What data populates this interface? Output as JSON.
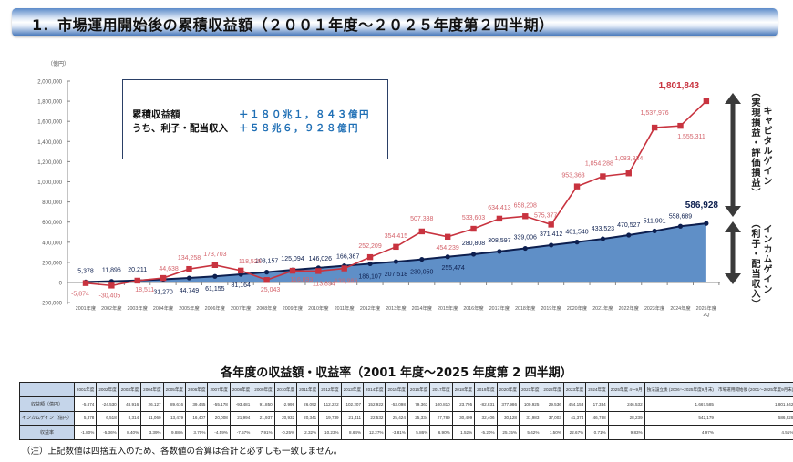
{
  "header": {
    "title": "1．市場運用開始後の累積収益額（２００１年度～２０２５年度第２四半期）"
  },
  "summary": {
    "rows": [
      {
        "label": "累積収益額",
        "value": "＋１８０兆１，８４３億円"
      },
      {
        "label": "うち、利子・配当収入",
        "value": "＋５８兆６，９２８億円"
      }
    ]
  },
  "side_labels": {
    "capital_gain": "キャピタルゲイン",
    "capital_gain_sub": "（実現損益・評価損益）",
    "income_gain": "インカムゲイン",
    "income_gain_sub": "（利子・配当収入）"
  },
  "colors": {
    "cumulative": "#c8333f",
    "cumulative_label": "#d4646c",
    "income_line": "#0d1f4f",
    "income_fill": "#5f8fc7",
    "axis": "#888888",
    "arrow": "#3a3a3a"
  },
  "chart_data": {
    "type": "line",
    "title": "市場運用開始後の累積収益額（2001年度～2025年度第2四半期）",
    "ylabel": "（億円）",
    "xlabel": "",
    "ylim": [
      -200000,
      2000000
    ],
    "yticks": [
      -200000,
      0,
      200000,
      400000,
      600000,
      800000,
      1000000,
      1200000,
      1400000,
      1600000,
      1800000,
      2000000
    ],
    "ytick_labels": [
      "-200,000",
      "0",
      "200,000",
      "400,000",
      "600,000",
      "800,000",
      "1,000,000",
      "1,200,000",
      "1,400,000",
      "1,600,000",
      "1,800,000",
      "2,000,000"
    ],
    "grid": false,
    "categories": [
      "2001年度",
      "2002年度",
      "2003年度",
      "2004年度",
      "2005年度",
      "2006年度",
      "2007年度",
      "2008年度",
      "2009年度",
      "2010年度",
      "2011年度",
      "2012年度",
      "2013年度",
      "2014年度",
      "2015年度",
      "2016年度",
      "2017年度",
      "2018年度",
      "2019年度",
      "2020年度",
      "2021年度",
      "2022年度",
      "2023年度",
      "2024年度",
      "2025年度"
    ],
    "x_suffix_last": "2Q",
    "series": [
      {
        "name": "累積収益額",
        "style": "line-square-markers",
        "values": [
          -5874,
          -30405,
          18511,
          44638,
          134258,
          173703,
          118525,
          25043,
          116893,
          113894,
          139986,
          252209,
          354415,
          507338,
          454239,
          533603,
          634413,
          658208,
          575377,
          953363,
          1054288,
          1083824,
          1537976,
          1555311,
          1801843
        ],
        "labels": [
          "-5,874",
          "-30,405",
          "18,511",
          "44,638",
          "134,258",
          "173,703",
          "118,525",
          "25,043",
          "116,893",
          "113,894",
          "139,986",
          "252,209",
          "354,415",
          "507,338",
          "454,239",
          "533,603",
          "634,413",
          "658,208",
          "575,377",
          "953,363",
          "1,054,288",
          "1,083,824",
          "1,537,976",
          "1,555,311",
          "1,801,843"
        ]
      },
      {
        "name": "インカムゲイン累積",
        "style": "area-line-circle-markers",
        "values": [
          5378,
          11896,
          20211,
          31270,
          44749,
          61155,
          81164,
          103157,
          125094,
          146026,
          166367,
          186107,
          207518,
          230050,
          255474,
          280808,
          308597,
          339006,
          371412,
          401540,
          433523,
          470527,
          511901,
          558689,
          586928
        ],
        "labels": [
          "5,378",
          "11,896",
          "20,211",
          "31,270",
          "44,749",
          "61,155",
          "81,164",
          "103,157",
          "125,094",
          "146,026",
          "166,367",
          "186,107",
          "207,518",
          "230,050",
          "255,474",
          "280,808",
          "308,597",
          "339,006",
          "371,412",
          "401,540",
          "433,523",
          "470,527",
          "511,901",
          "558,689",
          "586,928"
        ]
      }
    ],
    "annotations": [
      "1,801,843",
      "586,928",
      "キャピタルゲイン（実現損益・評価損益）",
      "インカムゲイン（利子・配当収入）"
    ]
  },
  "table": {
    "title": "各年度の収益額・収益率（2001 年度～2025 年度第 2 四半期）",
    "columns": [
      "2001年度",
      "2002年度",
      "2003年度",
      "2004年度",
      "2005年度",
      "2006年度",
      "2007年度",
      "2008年度",
      "2009年度",
      "2010年度",
      "2011年度",
      "2012年度",
      "2013年度",
      "2014年度",
      "2015年度",
      "2016年度",
      "2017年度",
      "2018年度",
      "2019年度",
      "2020年度",
      "2021年度",
      "2022年度",
      "2023年度",
      "2024年度",
      "2025年度 4～9月",
      "独法設立後 (2006～2025年度9月末)",
      "市場運用開始後 (2001～2025年度9月末)"
    ],
    "rows": [
      {
        "label": "収益額（億円）",
        "cells": [
          "-5,874",
          "-24,530",
          "48,916",
          "26,127",
          "89,616",
          "39,445",
          "-55,178",
          "-93,481",
          "91,850",
          "-2,999",
          "26,092",
          "112,222",
          "102,207",
          "152,922",
          "-53,098",
          "79,363",
          "100,810",
          "23,795",
          "-82,831",
          "377,986",
          "100,925",
          "29,536",
          "454,153",
          "17,334",
          "246,532",
          "1,667,585",
          "1,801,842"
        ]
      },
      {
        "label": "インカムゲイン（億円）",
        "cells": [
          "5,378",
          "6,518",
          "8,314",
          "11,060",
          "13,479",
          "16,407",
          "20,008",
          "21,994",
          "21,937",
          "20,932",
          "20,341",
          "19,739",
          "21,411",
          "22,532",
          "25,424",
          "25,334",
          "27,789",
          "30,409",
          "32,406",
          "30,128",
          "31,983",
          "37,003",
          "41,374",
          "46,788",
          "28,239",
          "542,179",
          "586,928"
        ]
      },
      {
        "label": "収益率",
        "cells": [
          "-1.80%",
          "-5.36%",
          "8.40%",
          "3.39%",
          "9.88%",
          "3.70%",
          "-4.59%",
          "-7.57%",
          "7.91%",
          "-0.25%",
          "2.32%",
          "10.23%",
          "8.64%",
          "12.27%",
          "-3.81%",
          "5.86%",
          "6.90%",
          "1.52%",
          "-5.20%",
          "25.15%",
          "5.42%",
          "1.50%",
          "22.67%",
          "0.71%",
          "9.83%",
          "4.97%",
          "4.51%"
        ]
      }
    ]
  },
  "note": "（注）上記数値は四捨五入のため、各数値の合算は合計と必ずしも一致しません。"
}
